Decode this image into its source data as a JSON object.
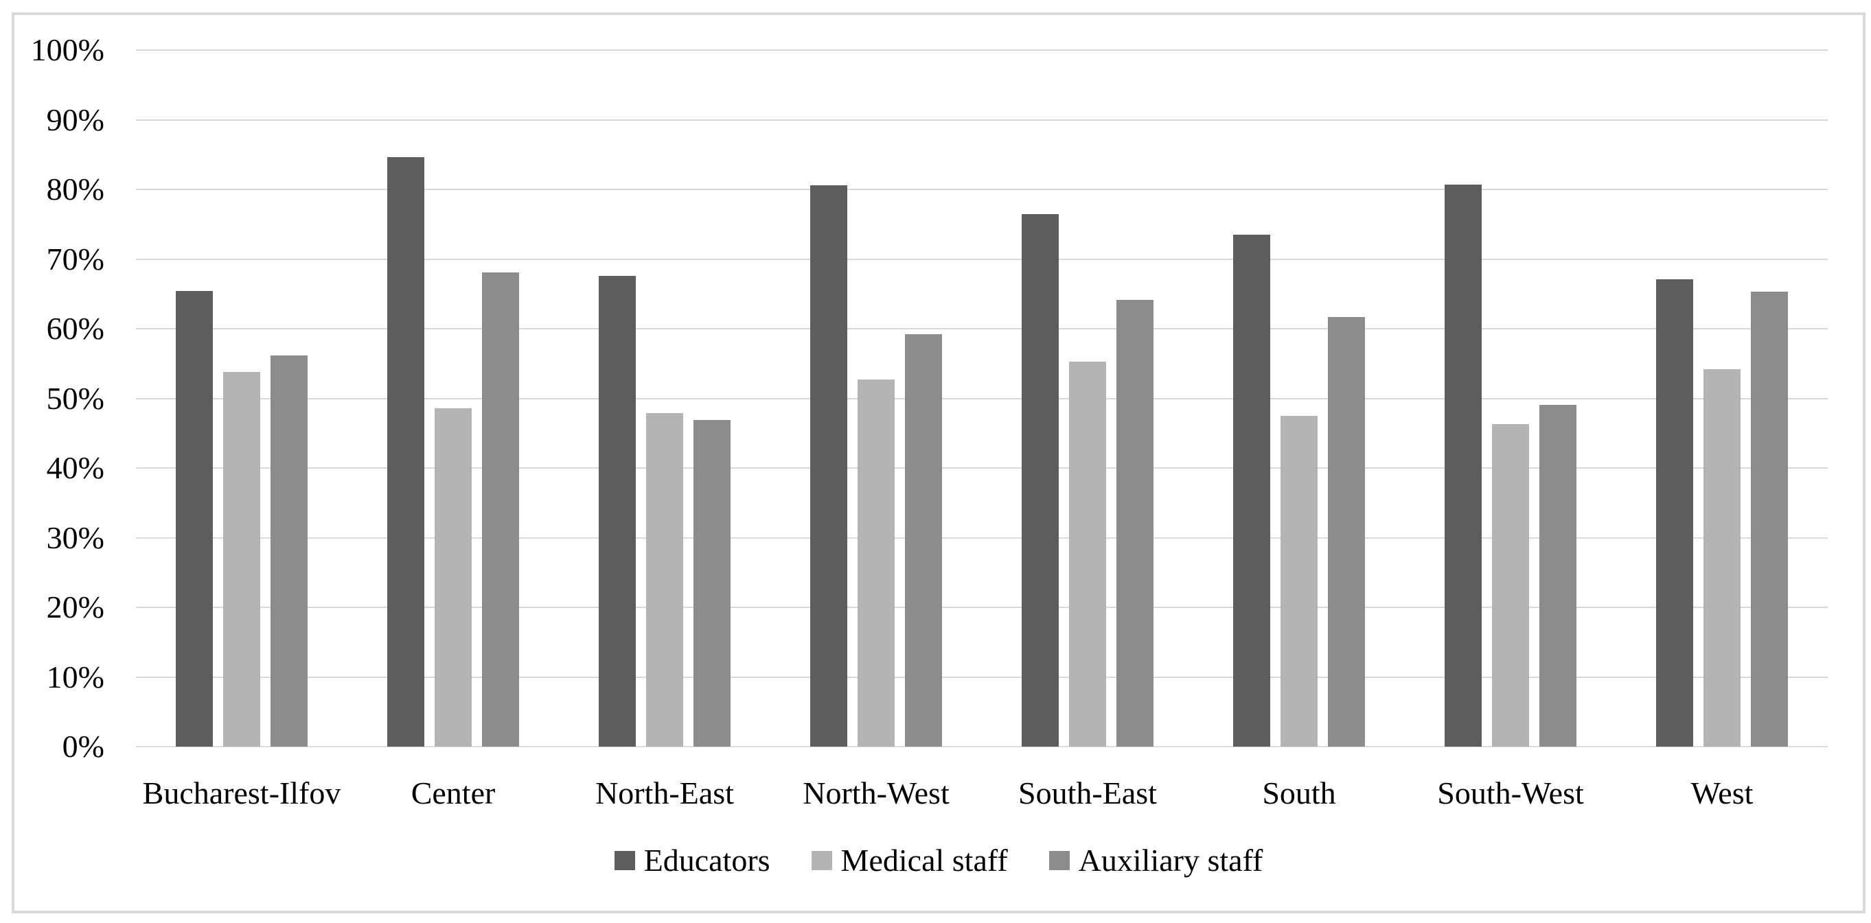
{
  "figure": {
    "background": "#ffffff",
    "border_color": "#d9d9d9",
    "gridline_color": "#d9d9d9",
    "text_color": "#000000"
  },
  "chart_data": {
    "type": "bar",
    "title": "",
    "xlabel": "",
    "ylabel": "",
    "categories": [
      "Bucharest-Ilfov",
      "Center",
      "North-East",
      "North-West",
      "South-East",
      "South",
      "South-West",
      "West"
    ],
    "series": [
      {
        "name": "Educators",
        "color": "#5d5d5d",
        "values": [
          65.4,
          84.6,
          67.6,
          80.6,
          76.5,
          73.5,
          80.7,
          67.1
        ]
      },
      {
        "name": "Medical staff",
        "color": "#b4b4b4",
        "values": [
          53.8,
          48.6,
          47.9,
          52.7,
          55.3,
          47.5,
          46.3,
          54.2
        ]
      },
      {
        "name": "Auxiliary staff",
        "color": "#8c8c8c",
        "values": [
          56.2,
          68.1,
          46.9,
          59.2,
          64.1,
          61.7,
          49.1,
          65.3
        ]
      }
    ],
    "ylim": [
      0,
      100
    ],
    "ytick_step": 10,
    "yticks": [
      "0%",
      "10%",
      "20%",
      "30%",
      "40%",
      "50%",
      "60%",
      "70%",
      "80%",
      "90%",
      "100%"
    ],
    "grid": "horizontal",
    "legend_position": "bottom"
  }
}
